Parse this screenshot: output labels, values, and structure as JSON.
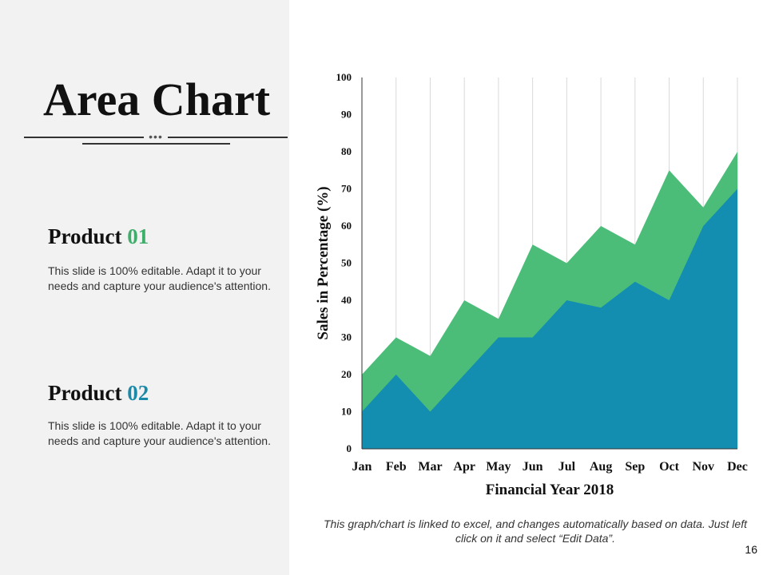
{
  "slide": {
    "title": "Area Chart",
    "divider_dots": "•••",
    "page_number": "16"
  },
  "products": [
    {
      "label": "Product",
      "number": "01",
      "description": "This slide is 100% editable. Adapt it to your needs and capture your audience's attention."
    },
    {
      "label": "Product",
      "number": "02",
      "description": "This slide is 100% editable. Adapt it to your needs and capture your audience's attention."
    }
  ],
  "footnote": "This graph/chart is linked to excel, and changes automatically based on data. Just left click on it and select “Edit Data”.",
  "colors": {
    "product_01": "#4bbd78",
    "product_02": "#138db0",
    "gridline": "#d9d9d9",
    "axis": "#333333"
  },
  "chart_data": {
    "type": "area",
    "stacked": false,
    "categories": [
      "Jan",
      "Feb",
      "Mar",
      "Apr",
      "May",
      "Jun",
      "Jul",
      "Aug",
      "Sep",
      "Oct",
      "Nov",
      "Dec"
    ],
    "series": [
      {
        "name": "Product 01",
        "values": [
          20,
          30,
          25,
          40,
          35,
          55,
          50,
          60,
          55,
          75,
          65,
          80
        ]
      },
      {
        "name": "Product 02",
        "values": [
          10,
          20,
          10,
          20,
          30,
          30,
          40,
          38,
          45,
          40,
          60,
          70
        ]
      }
    ],
    "ylim": [
      0,
      100
    ],
    "yticks": [
      "0",
      "10",
      "20",
      "30",
      "40",
      "50",
      "60",
      "70",
      "80",
      "90",
      "100"
    ],
    "xlabel": "Financial Year 2018",
    "ylabel": "Sales in Percentage (%)",
    "grid": "vertical"
  }
}
